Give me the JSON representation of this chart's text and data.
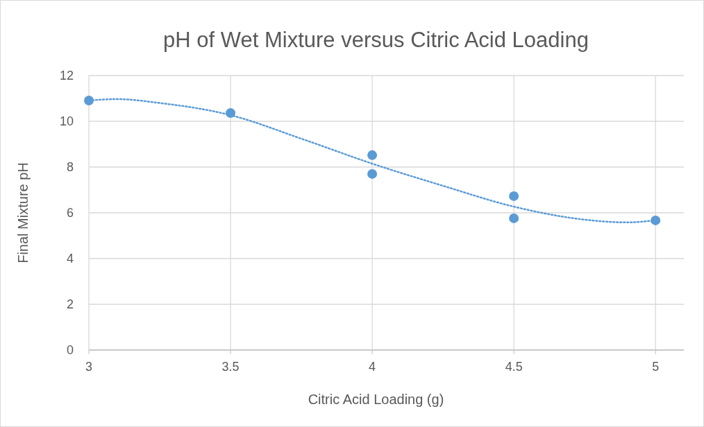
{
  "chart_data": {
    "type": "scatter",
    "title": "pH of Wet Mixture versus Citric Acid Loading",
    "xlabel": "Citric Acid Loading (g)",
    "ylabel": "Final Mixture pH",
    "xlim": [
      3,
      5.1
    ],
    "xticks": [
      3,
      3.5,
      4,
      4.5,
      5
    ],
    "ylim": [
      0,
      12
    ],
    "yticks": [
      0,
      2,
      4,
      6,
      8,
      10,
      12
    ],
    "grid": true,
    "marker": "circle",
    "series": [
      {
        "color": "#5b9bd5",
        "x": [
          3,
          3.5,
          4,
          4,
          4.5,
          4.5,
          5
        ],
        "values": [
          10.91,
          10.36,
          8.52,
          7.7,
          6.73,
          5.76,
          5.67
        ]
      },
      {
        "type": "line",
        "color": "#5b9bd5",
        "line_style": "dotted",
        "marker": "none",
        "x": [
          3,
          3.1,
          3.25,
          3.5,
          3.75,
          4,
          4.25,
          4.5,
          4.75,
          4.9,
          5
        ],
        "values": [
          10.91,
          10.97,
          10.8,
          10.27,
          9.24,
          8.15,
          7.18,
          6.27,
          5.7,
          5.58,
          5.67
        ]
      }
    ]
  }
}
